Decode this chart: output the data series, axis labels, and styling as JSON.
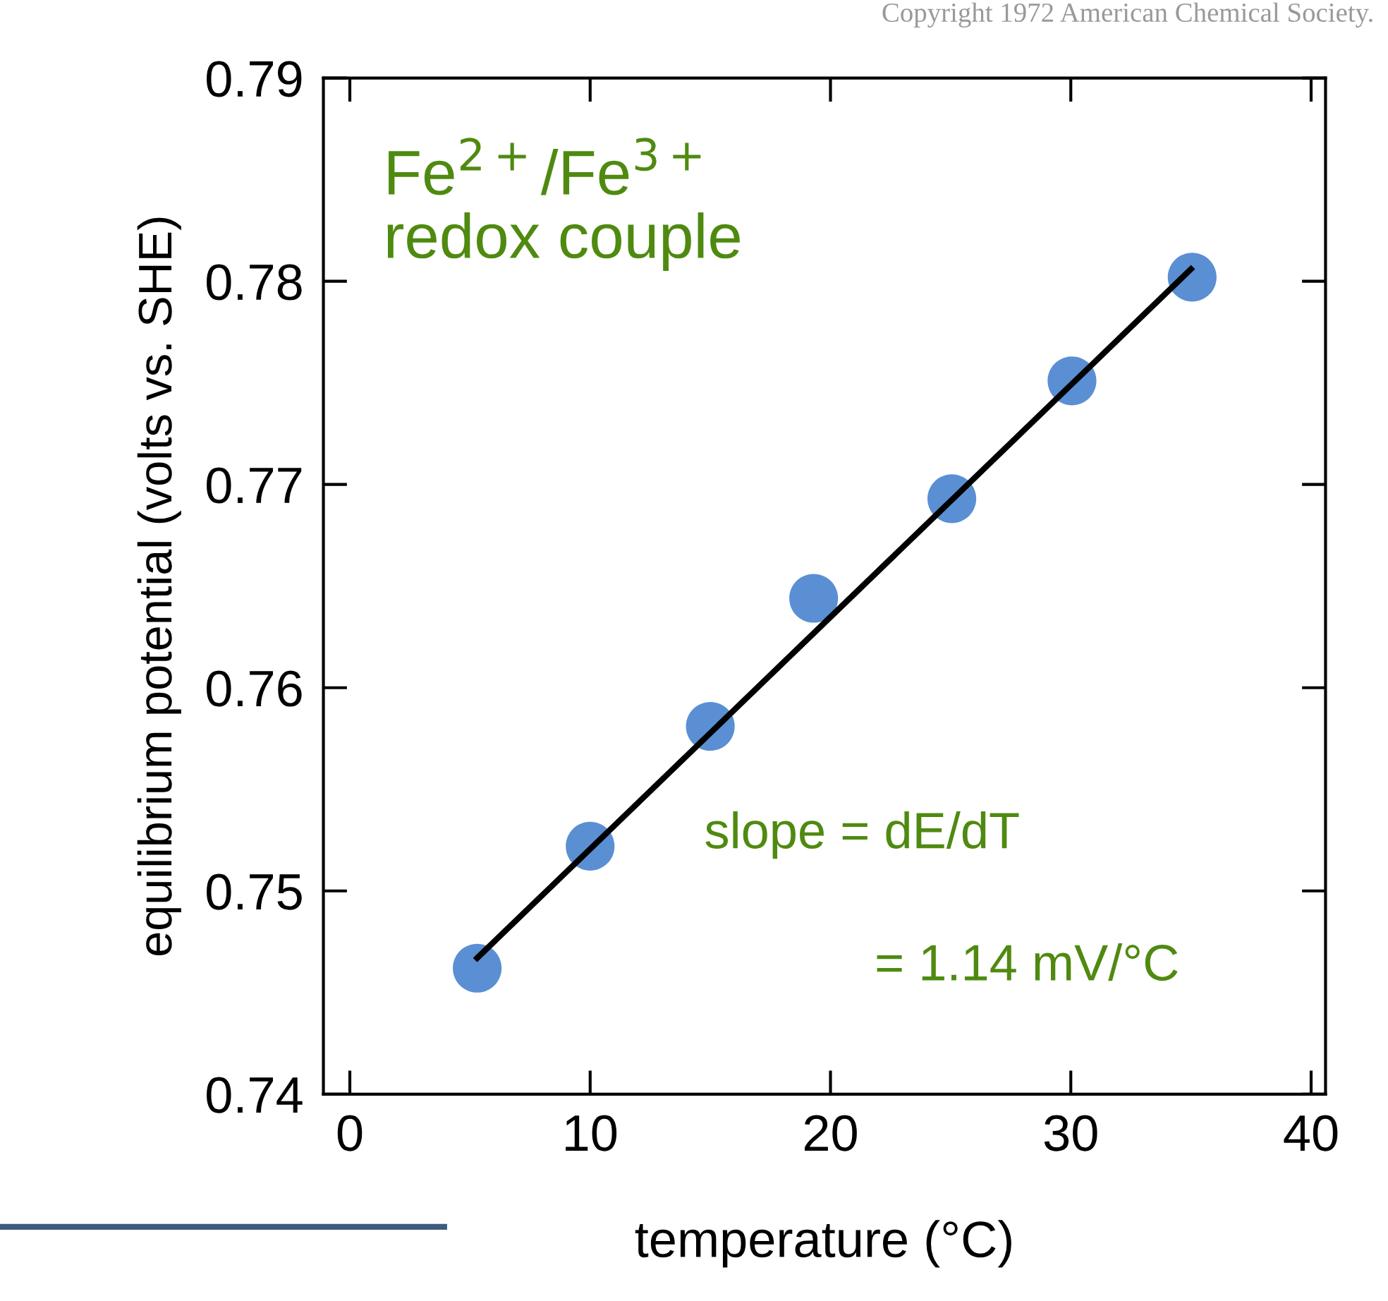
{
  "chart_data": {
    "type": "scatter",
    "xlabel": "temperature (°C)",
    "ylabel": "equilibrium potential (volts vs. SHE)",
    "xlim": [
      -1.1,
      40.6
    ],
    "ylim": [
      0.74,
      0.79
    ],
    "xticks": [
      0,
      10,
      20,
      30,
      40
    ],
    "yticks": [
      0.74,
      0.75,
      0.76,
      0.77,
      0.78,
      0.79
    ],
    "grid": false,
    "series": [
      {
        "marker": "circle",
        "color": "#5b8fd4",
        "x": [
          5.3,
          10,
          15,
          19.3,
          25.05,
          30.05,
          35.05
        ],
        "values": [
          0.7462,
          0.7522,
          0.7581,
          0.7644,
          0.7693,
          0.7751,
          0.7802
        ]
      },
      {
        "type": "line",
        "marker": "none",
        "color": "#000000",
        "line_style": "solid",
        "x": [
          5.3,
          35
        ],
        "values": [
          0.7467,
          0.7806
        ]
      }
    ],
    "annotations": [
      "Fe$^{2+}$/Fe$^{3+}$\nredox couple",
      "slope = dE/dT",
      "= 1.14 mV/°C",
      "Copyright 1972 American Chemical Society."
    ]
  }
}
